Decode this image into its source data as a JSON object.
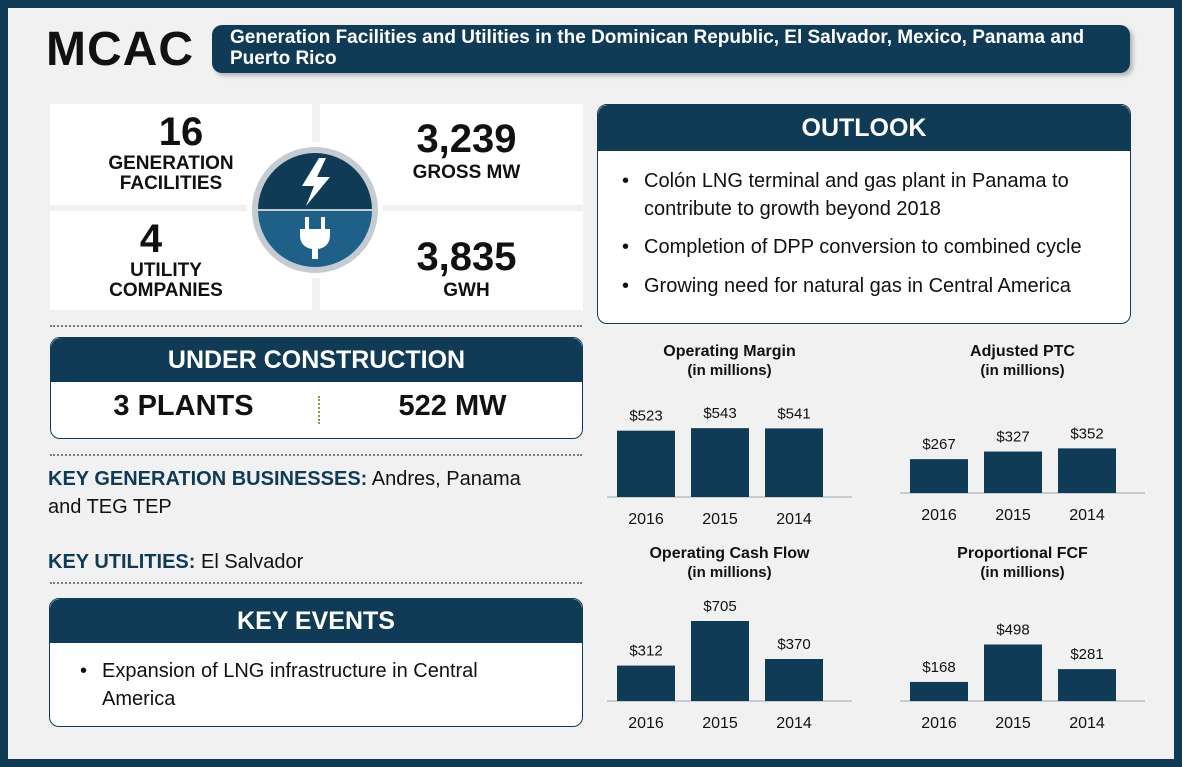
{
  "header": {
    "logo": "MCAC",
    "banner": "Generation Facilities and Utilities in the Dominican Republic, El Salvador, Mexico, Panama and Puerto Rico"
  },
  "stats": {
    "generation": {
      "value": "16",
      "label_line1": "GENERATION",
      "label_line2": "FACILITIES"
    },
    "utility": {
      "value": "4",
      "label_line1": "UTILITY",
      "label_line2": "COMPANIES"
    },
    "gross_mw": {
      "value": "3,239",
      "label": "GROSS MW"
    },
    "gwh": {
      "value": "3,835",
      "label": "GWH"
    }
  },
  "under_construction": {
    "title": "UNDER CONSTRUCTION",
    "plants": "3 PLANTS",
    "mw": "522 MW"
  },
  "key_generation": {
    "label": "KEY GENERATION BUSINESSES:",
    "value": " Andres, Panama and TEG TEP"
  },
  "key_utilities": {
    "label": "KEY UTILITIES:",
    "value": " El Salvador"
  },
  "key_events": {
    "title": "KEY EVENTS",
    "items": [
      "Expansion of LNG infrastructure in Central America"
    ]
  },
  "outlook": {
    "title": "OUTLOOK",
    "items": [
      "Colón LNG terminal and gas plant in Panama to contribute to growth beyond 2018",
      "Completion of DPP conversion to combined cycle",
      "Growing need for natural gas in Central America"
    ]
  },
  "colors": {
    "navy": "#0f3b57"
  },
  "chart_data": [
    {
      "type": "bar",
      "title": "Operating Margin",
      "subtitle": "(in millions)",
      "categories": [
        "2016",
        "2015",
        "2014"
      ],
      "values": [
        523,
        543,
        541
      ],
      "labels": [
        "$523",
        "$543",
        "$541"
      ],
      "ylim": [
        0,
        560
      ]
    },
    {
      "type": "bar",
      "title": "Adjusted PTC",
      "subtitle": "(in millions)",
      "categories": [
        "2016",
        "2015",
        "2014"
      ],
      "values": [
        267,
        327,
        352
      ],
      "labels": [
        "$267",
        "$327",
        "$352"
      ],
      "ylim": [
        0,
        560
      ]
    },
    {
      "type": "bar",
      "title": "Operating Cash Flow",
      "subtitle": "(in millions)",
      "categories": [
        "2016",
        "2015",
        "2014"
      ],
      "values": [
        312,
        705,
        370
      ],
      "labels": [
        "$312",
        "$705",
        "$370"
      ],
      "ylim": [
        0,
        705
      ]
    },
    {
      "type": "bar",
      "title": "Proportional FCF",
      "subtitle": "(in millions)",
      "categories": [
        "2016",
        "2015",
        "2014"
      ],
      "values": [
        168,
        498,
        281
      ],
      "labels": [
        "$168",
        "$498",
        "$281"
      ],
      "ylim": [
        0,
        705
      ]
    }
  ]
}
